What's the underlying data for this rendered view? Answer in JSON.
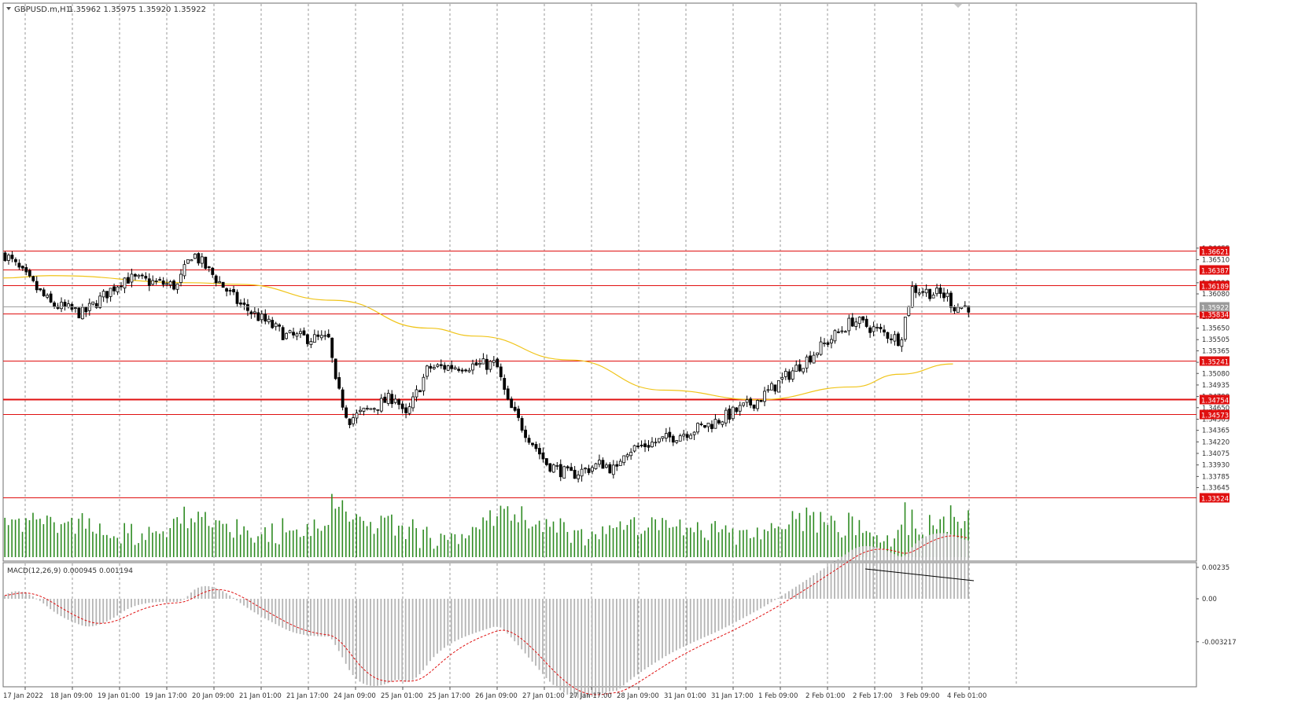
{
  "header": {
    "title": "GBPUSD.m,H1",
    "ohlc": "1.35962 1.35975 1.35920 1.35922"
  },
  "price_scale": [
    {
      "label": "1.36655",
      "value": 1.36655
    },
    {
      "label": "1.36510",
      "value": 1.3651
    },
    {
      "label": "1.36220",
      "value": 1.3622
    },
    {
      "label": "1.36080",
      "value": 1.3608
    },
    {
      "label": "1.35795",
      "value": 1.35795
    },
    {
      "label": "1.35650",
      "value": 1.3565
    },
    {
      "label": "1.35505",
      "value": 1.35505
    },
    {
      "label": "1.35365",
      "value": 1.35365
    },
    {
      "label": "1.35220",
      "value": 1.3522
    },
    {
      "label": "1.35080",
      "value": 1.3508
    },
    {
      "label": "1.34935",
      "value": 1.34935
    },
    {
      "label": "1.34790",
      "value": 1.3479
    },
    {
      "label": "1.34650",
      "value": 1.3465
    },
    {
      "label": "1.34505",
      "value": 1.34505
    },
    {
      "label": "1.34365",
      "value": 1.34365
    },
    {
      "label": "1.34220",
      "value": 1.3422
    },
    {
      "label": "1.34075",
      "value": 1.34075
    },
    {
      "label": "1.33930",
      "value": 1.3393
    },
    {
      "label": "1.33785",
      "value": 1.33785
    },
    {
      "label": "1.33645",
      "value": 1.33645
    }
  ],
  "levels": [
    {
      "label": "1.36621",
      "value": 1.36621
    },
    {
      "label": "1.36387",
      "value": 1.36387
    },
    {
      "label": "1.36189",
      "value": 1.36189
    },
    {
      "label": "1.35834",
      "value": 1.35834
    },
    {
      "label": "1.35241",
      "value": 1.35241
    },
    {
      "label": "1.34754",
      "value": 1.34754
    },
    {
      "label": "1.34573",
      "value": 1.34573
    },
    {
      "label": "1.33524",
      "value": 1.33524
    }
  ],
  "current_price": {
    "label": "1.35922",
    "value": 1.35922
  },
  "time_labels": [
    "17 Jan 2022",
    "18 Jan 09:00",
    "19 Jan 01:00",
    "19 Jan 17:00",
    "20 Jan 09:00",
    "21 Jan 01:00",
    "21 Jan 17:00",
    "24 Jan 09:00",
    "25 Jan 01:00",
    "25 Jan 17:00",
    "26 Jan 09:00",
    "27 Jan 01:00",
    "27 Jan 17:00",
    "28 Jan 09:00",
    "31 Jan 01:00",
    "31 Jan 17:00",
    "1 Feb 09:00",
    "2 Feb 01:00",
    "2 Feb 17:00",
    "3 Feb 09:00",
    "4 Feb 01:00"
  ],
  "macd": {
    "label": "MACD(12,26,9) 0.000945 0.001194",
    "scale": [
      {
        "label": "0.00235",
        "value": 0.00235
      },
      {
        "label": "0.00",
        "value": 0
      },
      {
        "label": "-0.003217",
        "value": -0.003217
      }
    ]
  },
  "colors": {
    "bull_body": "#ffffff",
    "bear_body": "#000000",
    "level_line": "#e01010",
    "level_tag": "#e01010",
    "moving_average": "#f0c419",
    "volume": "#2e8b22",
    "macd_histogram": "#b4b4b4",
    "macd_signal": "#e01010",
    "divergence_line": "#000000",
    "grid": "#9a9a9a"
  },
  "chart_data": {
    "type": "candlestick",
    "symbol": "GBPUSD.m,H1",
    "x_range": [
      "17 Jan 2022",
      "4 Feb 01:00"
    ],
    "ylim": [
      1.3352,
      1.3668
    ],
    "path_keypoints": [
      {
        "t": "17 Jan 2022",
        "price": 1.366
      },
      {
        "t": "18 Jan 09:00",
        "price": 1.3595
      },
      {
        "t": "18 Jan 20:00",
        "price": 1.3583
      },
      {
        "t": "19 Jan 10:00",
        "price": 1.3628
      },
      {
        "t": "20 Jan 04:00",
        "price": 1.3618
      },
      {
        "t": "20 Jan 09:00",
        "price": 1.366
      },
      {
        "t": "21 Jan 01:00",
        "price": 1.3595
      },
      {
        "t": "21 Jan 17:00",
        "price": 1.3555
      },
      {
        "t": "24 Jan 04:00",
        "price": 1.355
      },
      {
        "t": "24 Jan 09:00",
        "price": 1.35
      },
      {
        "t": "24 Jan 14:00",
        "price": 1.345
      },
      {
        "t": "25 Jan 06:00",
        "price": 1.348
      },
      {
        "t": "25 Jan 09:00",
        "price": 1.345
      },
      {
        "t": "25 Jan 17:00",
        "price": 1.3515
      },
      {
        "t": "26 Jan 16:00",
        "price": 1.352
      },
      {
        "t": "26 Jan 20:00",
        "price": 1.347
      },
      {
        "t": "27 Jan 01:00",
        "price": 1.344
      },
      {
        "t": "27 Jan 09:00",
        "price": 1.3395
      },
      {
        "t": "27 Jan 17:00",
        "price": 1.338
      },
      {
        "t": "28 Jan 04:00",
        "price": 1.3395
      },
      {
        "t": "28 Jan 09:00",
        "price": 1.3385
      },
      {
        "t": "28 Jan 16:00",
        "price": 1.341
      },
      {
        "t": "31 Jan 01:00",
        "price": 1.3425
      },
      {
        "t": "31 Jan 17:00",
        "price": 1.3445
      },
      {
        "t": "1 Feb 09:00",
        "price": 1.3475
      },
      {
        "t": "2 Feb 01:00",
        "price": 1.3525
      },
      {
        "t": "2 Feb 17:00",
        "price": 1.3575
      },
      {
        "t": "3 Feb 09:00",
        "price": 1.355
      },
      {
        "t": "3 Feb 13:00",
        "price": 1.3615
      },
      {
        "t": "4 Feb 01:00",
        "price": 1.3605
      },
      {
        "t": "4 Feb 03:00",
        "price": 1.3592
      }
    ],
    "moving_average_keypoints": [
      {
        "t": "17 Jan 2022",
        "price": 1.3628
      },
      {
        "t": "18 Jan 09:00",
        "price": 1.3631
      },
      {
        "t": "20 Jan 09:00",
        "price": 1.3622
      },
      {
        "t": "21 Jan 01:00",
        "price": 1.362
      },
      {
        "t": "24 Jan 09:00",
        "price": 1.36
      },
      {
        "t": "25 Jan 17:00",
        "price": 1.3565
      },
      {
        "t": "26 Jan 09:00",
        "price": 1.3555
      },
      {
        "t": "27 Jan 17:00",
        "price": 1.3525
      },
      {
        "t": "31 Jan 01:00",
        "price": 1.3487
      },
      {
        "t": "1 Feb 09:00",
        "price": 1.3475
      },
      {
        "t": "2 Feb 17:00",
        "price": 1.3491
      },
      {
        "t": "3 Feb 09:00",
        "price": 1.3507
      },
      {
        "t": "4 Feb 03:00",
        "price": 1.352
      }
    ]
  }
}
